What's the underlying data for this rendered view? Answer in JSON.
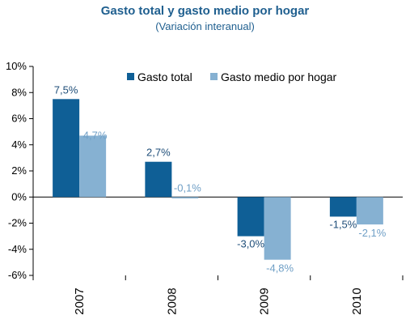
{
  "chart_data": {
    "type": "bar",
    "title": "Gasto total y gasto medio por hogar",
    "subtitle": "(Variación interanual)",
    "categories": [
      "2007",
      "2008",
      "2009",
      "2010"
    ],
    "series": [
      {
        "name": "Gasto total",
        "values": [
          7.5,
          2.7,
          -3.0,
          -1.5
        ],
        "labels": [
          "7,5%",
          "2,7%",
          "-3,0%",
          "-1,5%"
        ],
        "color": "#0f5f96",
        "label_color": "#1f4e79"
      },
      {
        "name": "Gasto medio por hogar",
        "values": [
          4.7,
          -0.1,
          -4.8,
          -2.1
        ],
        "labels": [
          "4,7%",
          "-0,1%",
          "-4,8%",
          "-2,1%"
        ],
        "color": "#86b1d2",
        "label_color": "#6f9fc6"
      }
    ],
    "ylim": [
      -6,
      10
    ],
    "yticks": [
      "-6%",
      "-4%",
      "-2%",
      "0%",
      "2%",
      "4%",
      "6%",
      "8%",
      "10%"
    ],
    "grid": false,
    "legend_position": "top-right"
  }
}
